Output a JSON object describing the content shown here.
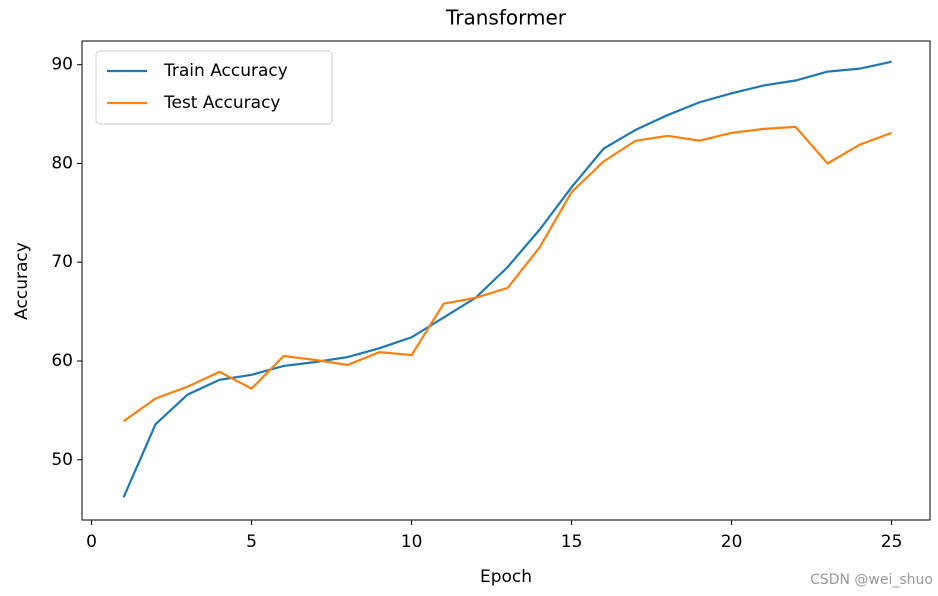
{
  "chart_data": {
    "type": "line",
    "title": "Transformer",
    "xlabel": "Epoch",
    "ylabel": "Accuracy",
    "x": [
      1,
      2,
      3,
      4,
      5,
      6,
      7,
      8,
      9,
      10,
      11,
      12,
      13,
      14,
      15,
      16,
      17,
      18,
      19,
      20,
      21,
      22,
      23,
      24,
      25
    ],
    "series": [
      {
        "name": "Train Accuracy",
        "color": "#1f77b4",
        "values": [
          46.2,
          53.6,
          56.6,
          58.1,
          58.6,
          59.5,
          59.9,
          60.4,
          61.3,
          62.4,
          64.4,
          66.4,
          69.5,
          73.3,
          77.6,
          81.5,
          83.4,
          84.9,
          86.2,
          87.1,
          87.9,
          88.4,
          89.3,
          89.6,
          90.3
        ]
      },
      {
        "name": "Test Accuracy",
        "color": "#ff7f0e",
        "values": [
          53.9,
          56.2,
          57.4,
          58.9,
          57.2,
          60.5,
          60.1,
          59.6,
          60.9,
          60.6,
          65.8,
          66.4,
          67.4,
          71.5,
          77.1,
          80.2,
          82.3,
          82.8,
          82.3,
          83.1,
          83.5,
          83.7,
          80.0,
          81.9,
          83.1
        ]
      }
    ],
    "xlim": [
      -0.3,
      26.2
    ],
    "xticks": [
      0,
      5,
      10,
      15,
      20,
      25
    ],
    "ylim": [
      43.9,
      92.4
    ],
    "yticks": [
      50,
      60,
      70,
      80,
      90
    ],
    "legend": "upper left",
    "watermark": "CSDN @wei_shuo"
  }
}
